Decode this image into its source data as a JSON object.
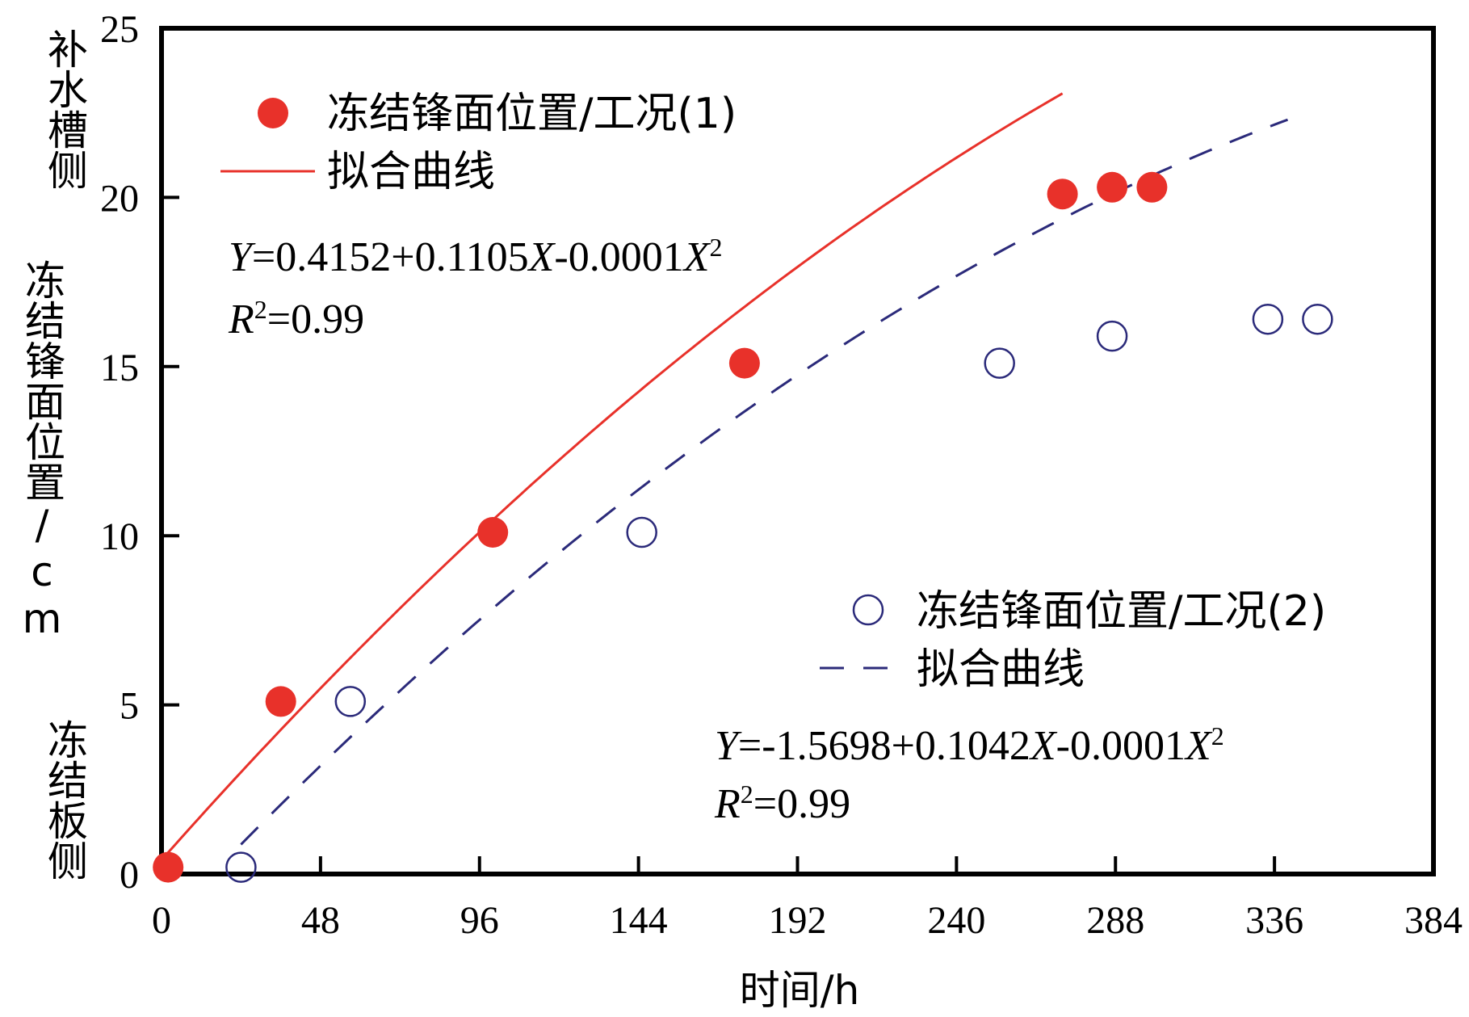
{
  "chart_data": {
    "type": "scatter",
    "xlabel": "时间/h",
    "ylabel": "冻结锋面位置/cm",
    "ylabel_top": "补水槽侧",
    "ylabel_bottom": "冻结板侧",
    "xlim": [
      0,
      384
    ],
    "ylim": [
      0,
      25
    ],
    "xticks": [
      0,
      48,
      96,
      144,
      192,
      240,
      288,
      336,
      384
    ],
    "yticks": [
      0,
      5,
      10,
      15,
      20,
      25
    ],
    "grid": false,
    "series": [
      {
        "name": "冻结锋面位置/工况(1)",
        "marker": "filled-circle",
        "color": "#e8312a",
        "x": [
          2,
          36,
          100,
          176,
          272,
          287,
          299
        ],
        "y": [
          0.2,
          5.1,
          10.1,
          15.1,
          20.1,
          20.3,
          20.3
        ]
      },
      {
        "name": "冻结锋面位置/工况(2)",
        "marker": "open-circle",
        "color": "#2b2a7a",
        "x": [
          24,
          57,
          145,
          253,
          287,
          334,
          349
        ],
        "y": [
          0.2,
          5.1,
          10.1,
          15.1,
          15.9,
          16.4,
          16.4
        ]
      }
    ],
    "fits": [
      {
        "name": "拟合曲线",
        "style": "solid",
        "color": "#e8312a",
        "coefficients": [
          0.4152,
          0.1105,
          -0.0001
        ],
        "x_range": [
          0,
          272
        ],
        "equation": {
          "y": "Y",
          "rhs_1": "=0.4152+0.1105",
          "x1": "X",
          "rhs_2": "-0.0001",
          "x2": "X",
          "exp": "2",
          "r_lhs": "R",
          "r_exp": "2",
          "r_rhs": "=0.99"
        }
      },
      {
        "name": "拟合曲线",
        "style": "dashed",
        "color": "#2b2a7a",
        "coefficients": [
          -1.5698,
          0.1042,
          -0.0001
        ],
        "x_range": [
          24,
          340
        ],
        "equation": {
          "y": "Y",
          "rhs_1": "=-1.5698+0.1042",
          "x1": "X",
          "rhs_2": "-0.0001",
          "x2": "X",
          "exp": "2",
          "r_lhs": "R",
          "r_exp": "2",
          "r_rhs": "=0.99"
        }
      }
    ]
  }
}
